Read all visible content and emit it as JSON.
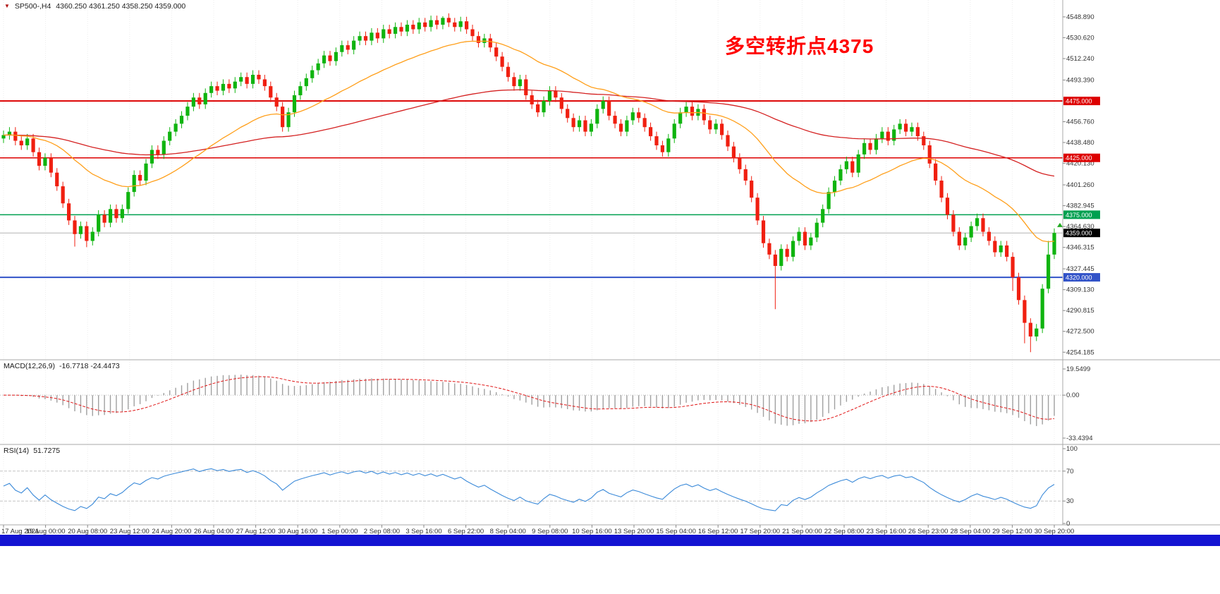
{
  "window": {
    "symbol_info": {
      "arrow_icon": "▼",
      "symbol": "SP500-,H4",
      "ohlc": "4360.250 4361.250 4358.250 4359.000"
    }
  },
  "annotation": {
    "text": "多空转折点4375",
    "color": "#ff0000"
  },
  "taskbar": {
    "color": "#1414d2"
  },
  "chart_data": {
    "type": "candlestick",
    "symbol": "SP500-",
    "timeframe": "H4",
    "last_quote": {
      "open": 4360.25,
      "high": 4361.25,
      "low": 4358.25,
      "close": 4359.0
    },
    "ylim": [
      4250,
      4560
    ],
    "price_ticks": [
      "4548.890",
      "4530.620",
      "4512.240",
      "4493.390",
      "4456.760",
      "4438.480",
      "4420.130",
      "4401.260",
      "4382.945",
      "4364.630",
      "4346.315",
      "4327.445",
      "4309.130",
      "4290.815",
      "4272.500",
      "4254.185"
    ],
    "level_lines": [
      {
        "price": 4475.0,
        "label": "4475.000",
        "color": "#dd0000",
        "width": 2
      },
      {
        "price": 4425.0,
        "label": "4425.000",
        "color": "#dd0000",
        "width": 1.4
      },
      {
        "price": 4375.0,
        "label": "4375.000",
        "color": "#00a050",
        "width": 1.6
      },
      {
        "price": 4320.0,
        "label": "4320.000",
        "color": "#3152c8",
        "width": 2
      }
    ],
    "current_price": {
      "value": 4359.0,
      "label": "4359.000",
      "tag_color": "#000000",
      "line_color": "#b4b4b4"
    },
    "candle_colors": {
      "up": "#0fb40f",
      "down": "#f01f10"
    },
    "ma_lines": [
      {
        "name": "slow",
        "color": "#d42020",
        "period": 110
      },
      {
        "name": "fast",
        "color": "#ff9f1a",
        "period": 28
      }
    ],
    "open_first": 4442,
    "wick_pts": 4,
    "closes": [
      4445,
      4448,
      4440,
      4436,
      4442,
      4430,
      4418,
      4425,
      4412,
      4400,
      4385,
      4370,
      4358,
      4365,
      4352,
      4360,
      4375,
      4368,
      4380,
      4372,
      4380,
      4395,
      4410,
      4405,
      4420,
      4432,
      4428,
      4440,
      4448,
      4455,
      4462,
      4470,
      4478,
      4472,
      4482,
      4488,
      4484,
      4490,
      4486,
      4492,
      4496,
      4490,
      4498,
      4494,
      4488,
      4478,
      4470,
      4452,
      4465,
      4480,
      4488,
      4495,
      4502,
      4508,
      4515,
      4510,
      4518,
      4524,
      4520,
      4528,
      4532,
      4528,
      4535,
      4530,
      4538,
      4534,
      4540,
      4536,
      4542,
      4538,
      4544,
      4540,
      4546,
      4542,
      4548,
      4544,
      4540,
      4545,
      4538,
      4532,
      4526,
      4530,
      4522,
      4514,
      4505,
      4496,
      4488,
      4494,
      4480,
      4472,
      4465,
      4475,
      4484,
      4478,
      4468,
      4460,
      4452,
      4458,
      4448,
      4455,
      4468,
      4475,
      4462,
      4455,
      4448,
      4458,
      4465,
      4460,
      4452,
      4444,
      4436,
      4430,
      4442,
      4455,
      4465,
      4470,
      4462,
      4468,
      4458,
      4450,
      4455,
      4445,
      4435,
      4425,
      4415,
      4405,
      4390,
      4370,
      4350,
      4340,
      4330,
      4345,
      4338,
      4352,
      4360,
      4348,
      4355,
      4368,
      4380,
      4395,
      4405,
      4415,
      4422,
      4412,
      4428,
      4438,
      4432,
      4442,
      4448,
      4440,
      4450,
      4455,
      4448,
      4452,
      4444,
      4436,
      4420,
      4405,
      4390,
      4375,
      4360,
      4348,
      4355,
      4365,
      4372,
      4360,
      4352,
      4342,
      4348,
      4338,
      4320,
      4300,
      4280,
      4268,
      4275,
      4310,
      4340,
      4359
    ],
    "special_wicks": {
      "12": {
        "low": 4347
      },
      "14": {
        "low": 4346.5
      },
      "74": {
        "high": 4549.5
      },
      "130": {
        "low": 4292
      },
      "170": {
        "low": 4308
      },
      "172": {
        "low": 4262
      },
      "173": {
        "low": 4254.2
      },
      "176": {
        "high": 4352
      }
    },
    "marker": {
      "price": 4366,
      "color": "#22aa22"
    },
    "time_labels": [
      "17 Aug 2021",
      "19 Aug 00:00",
      "20 Aug 08:00",
      "23 Aug 12:00",
      "24 Aug 20:00",
      "26 Aug 04:00",
      "27 Aug 12:00",
      "30 Aug 16:00",
      "1 Sep 00:00",
      "2 Sep 08:00",
      "3 Sep 16:00",
      "6 Sep 22:00",
      "8 Sep 04:00",
      "9 Sep 08:00",
      "10 Sep 16:00",
      "13 Sep 20:00",
      "15 Sep 04:00",
      "16 Sep 12:00",
      "17 Sep 20:00",
      "21 Sep 00:00",
      "22 Sep 08:00",
      "23 Sep 16:00",
      "26 Sep 23:00",
      "28 Sep 04:00",
      "29 Sep 12:00",
      "30 Sep 20:00"
    ],
    "indicators": {
      "macd": {
        "label": "MACD(12,26,9)",
        "values_text": "-16.7718 -24.4473",
        "params": [
          12,
          26,
          9
        ],
        "ylim": [
          -50,
          32
        ],
        "axis_ticks": [
          "19.5499",
          "0.00",
          "-33.4394"
        ],
        "axis_tick_values": [
          19.5499,
          0.0,
          -33.4394
        ],
        "histogram_color": "#a0a0a0",
        "signal_color": "#e01616"
      },
      "rsi": {
        "label": "RSI(14)",
        "value_text": "51.7275",
        "period": 14,
        "ylim": [
          0,
          100
        ],
        "levels": [
          70,
          30
        ],
        "axis_ticks": [
          "100",
          "70",
          "30",
          "0"
        ],
        "axis_tick_values": [
          100,
          70,
          30,
          0
        ],
        "line_color": "#3b8ad9"
      }
    }
  }
}
